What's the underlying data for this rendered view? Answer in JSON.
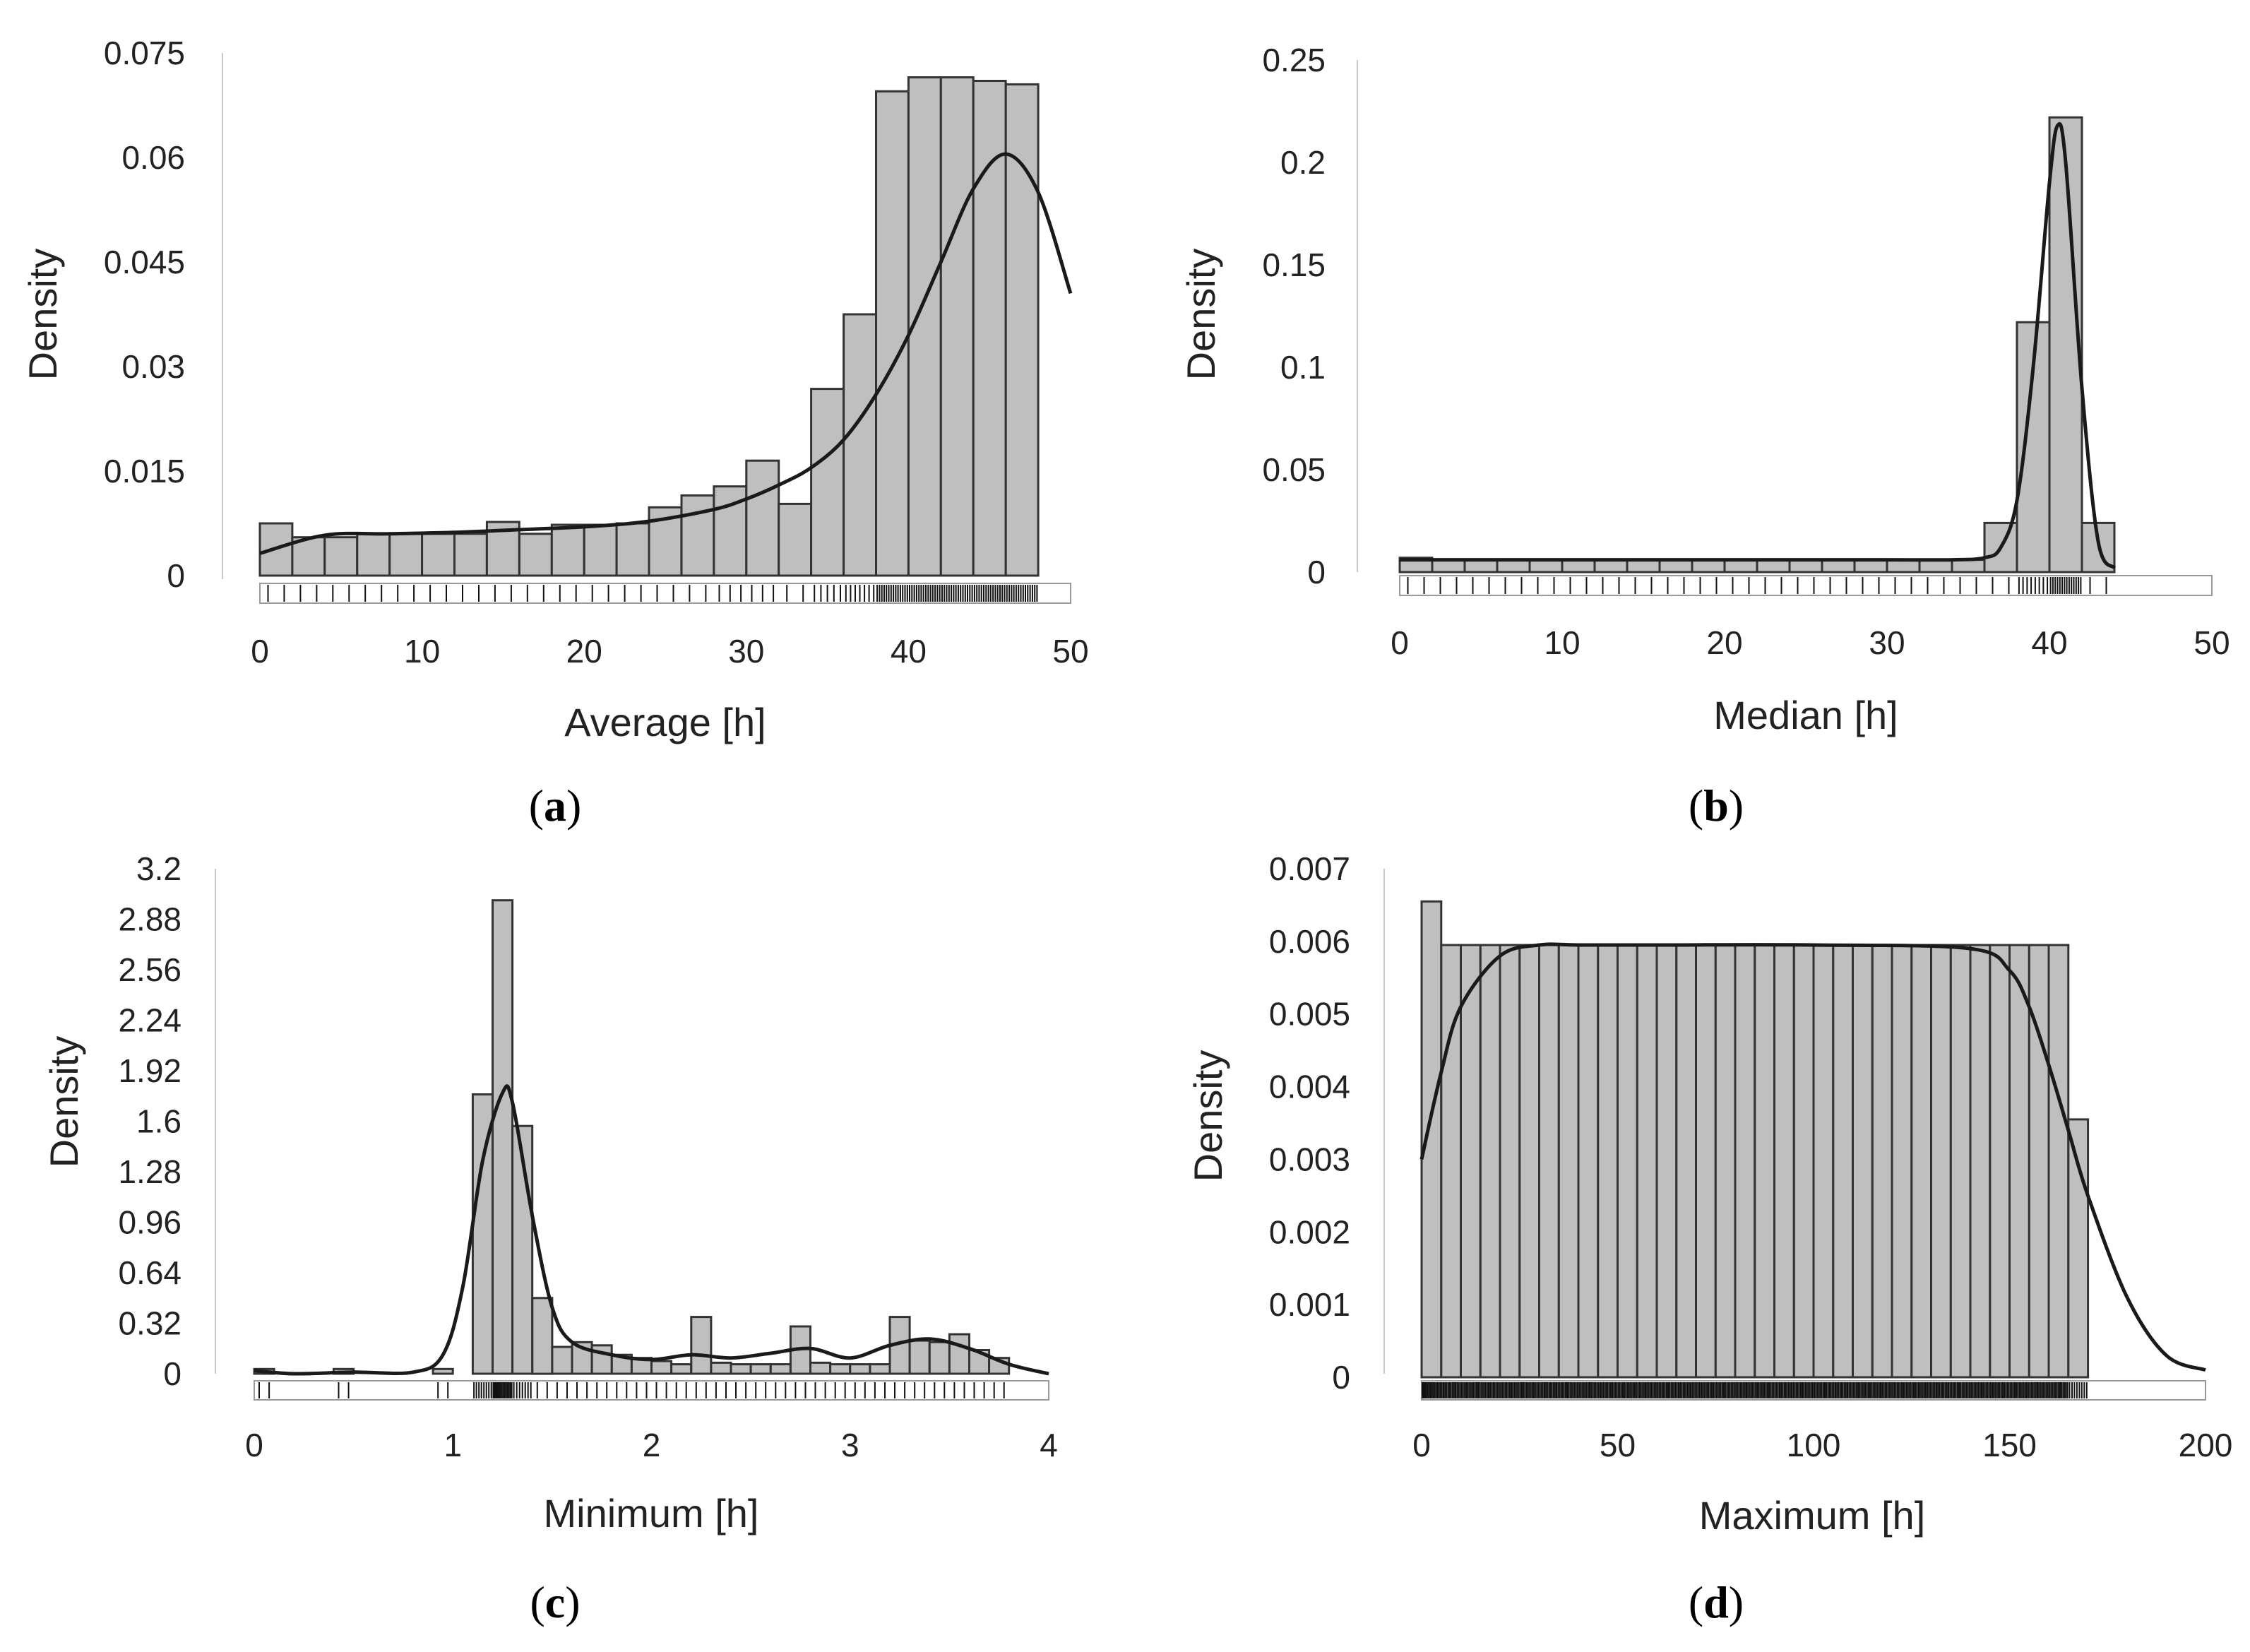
{
  "chart_data": [
    {
      "id": "a",
      "type": "bar",
      "panel_label": "a",
      "xlabel": "Average [h]",
      "ylabel": "Density",
      "xlim": [
        0,
        50
      ],
      "ylim": [
        0,
        0.075
      ],
      "xticks": [
        "0",
        "10",
        "20",
        "30",
        "40",
        "50"
      ],
      "yticks": [
        "0",
        "0.015",
        "0.03",
        "0.045",
        "0.06",
        "0.075"
      ],
      "bin_width": 2,
      "bins_start": 0,
      "values": [
        0.0075,
        0.0055,
        0.0055,
        0.006,
        0.006,
        0.006,
        0.006,
        0.0077,
        0.006,
        0.0073,
        0.0073,
        0.0075,
        0.0098,
        0.0115,
        0.0128,
        0.0165,
        0.0103,
        0.0268,
        0.0375,
        0.0695,
        0.0715,
        0.0715,
        0.071,
        0.0705
      ],
      "kde": {
        "x": [
          0,
          4,
          8,
          12,
          16,
          20,
          24,
          28,
          30,
          32,
          34,
          36,
          38,
          40,
          42,
          44,
          46,
          48,
          50
        ],
        "y": [
          0.0032,
          0.0058,
          0.006,
          0.0062,
          0.0066,
          0.007,
          0.0078,
          0.0095,
          0.011,
          0.013,
          0.0155,
          0.0195,
          0.026,
          0.0345,
          0.045,
          0.0555,
          0.0605,
          0.055,
          0.0405
        ]
      }
    },
    {
      "id": "b",
      "type": "bar",
      "panel_label": "b",
      "xlabel": "Median [h]",
      "ylabel": "Density",
      "xlim": [
        0,
        50
      ],
      "ylim": [
        0,
        0.25
      ],
      "xticks": [
        "0",
        "10",
        "20",
        "30",
        "40",
        "50"
      ],
      "yticks": [
        "0",
        "0.05",
        "0.1",
        "0.15",
        "0.2",
        "0.25"
      ],
      "bin_width": 2,
      "bins_start": 0,
      "values": [
        0.007,
        0.006,
        0.006,
        0.006,
        0.006,
        0.006,
        0.006,
        0.006,
        0.006,
        0.006,
        0.006,
        0.006,
        0.006,
        0.006,
        0.006,
        0.006,
        0.006,
        0.006,
        0.024,
        0.122,
        0.222,
        0.024
      ],
      "kde": {
        "x": [
          0,
          10,
          20,
          30,
          34,
          36,
          37,
          38,
          39,
          40,
          40.5,
          41,
          42,
          43,
          44
        ],
        "y": [
          0.006,
          0.006,
          0.006,
          0.006,
          0.006,
          0.007,
          0.012,
          0.035,
          0.1,
          0.19,
          0.218,
          0.2,
          0.09,
          0.015,
          0.002
        ]
      }
    },
    {
      "id": "c",
      "type": "bar",
      "panel_label": "c",
      "xlabel": "Minimum [h]",
      "ylabel": "Density",
      "xlim": [
        0,
        4
      ],
      "ylim": [
        0,
        3.2
      ],
      "xticks": [
        "0",
        "1",
        "2",
        "3",
        "4"
      ],
      "yticks": [
        "0",
        "0.32",
        "0.64",
        "0.96",
        "1.28",
        "1.6",
        "1.92",
        "2.24",
        "2.56",
        "2.88",
        "3.2"
      ],
      "bin_width": 0.1,
      "bins_start": 0,
      "values": [
        0.03,
        0,
        0,
        0,
        0.03,
        0,
        0,
        0,
        0,
        0.03,
        0,
        1.77,
        3.0,
        1.57,
        0.48,
        0.17,
        0.2,
        0.18,
        0.12,
        0.1,
        0.08,
        0.06,
        0.36,
        0.07,
        0.06,
        0.06,
        0.06,
        0.3,
        0.07,
        0.06,
        0.06,
        0.06,
        0.36,
        0.21,
        0.2,
        0.25,
        0.15,
        0.1
      ],
      "kde": {
        "x": [
          0,
          0.2,
          0.5,
          0.8,
          0.95,
          1.05,
          1.15,
          1.25,
          1.3,
          1.4,
          1.5,
          1.6,
          1.8,
          2.0,
          2.2,
          2.4,
          2.6,
          2.8,
          3.0,
          3.2,
          3.4,
          3.6,
          3.8,
          4.0
        ],
        "y": [
          0.02,
          0.0,
          0.01,
          0.01,
          0.12,
          0.55,
          1.35,
          1.78,
          1.72,
          1.0,
          0.42,
          0.2,
          0.12,
          0.09,
          0.12,
          0.1,
          0.13,
          0.16,
          0.1,
          0.18,
          0.22,
          0.16,
          0.06,
          0.0
        ]
      }
    },
    {
      "id": "d",
      "type": "bar",
      "panel_label": "d",
      "xlabel": "Maximum [h]",
      "ylabel": "Density",
      "xlim": [
        0,
        200
      ],
      "ylim": [
        0,
        0.007
      ],
      "xticks": [
        "0",
        "50",
        "100",
        "150",
        "200"
      ],
      "yticks": [
        "0",
        "0.001",
        "0.002",
        "0.003",
        "0.004",
        "0.005",
        "0.006",
        "0.007"
      ],
      "bin_width": 5,
      "bins_start": 0,
      "values": [
        0.00655,
        0.00595,
        0.00595,
        0.00595,
        0.00595,
        0.00595,
        0.00595,
        0.00595,
        0.00595,
        0.00595,
        0.00595,
        0.00595,
        0.00595,
        0.00595,
        0.00595,
        0.00595,
        0.00595,
        0.00595,
        0.00595,
        0.00595,
        0.00595,
        0.00595,
        0.00595,
        0.00595,
        0.00595,
        0.00595,
        0.00595,
        0.00595,
        0.00595,
        0.00595,
        0.00595,
        0.00595,
        0.00595,
        0.00355
      ],
      "kde": {
        "x": [
          0,
          5,
          10,
          20,
          30,
          40,
          60,
          100,
          140,
          150,
          155,
          160,
          165,
          170,
          180,
          190,
          200
        ],
        "y": [
          0.003,
          0.0042,
          0.0051,
          0.0058,
          0.00595,
          0.00595,
          0.00595,
          0.00595,
          0.0059,
          0.0056,
          0.0051,
          0.0043,
          0.0034,
          0.0025,
          0.0011,
          0.0003,
          0.0001
        ]
      }
    }
  ]
}
